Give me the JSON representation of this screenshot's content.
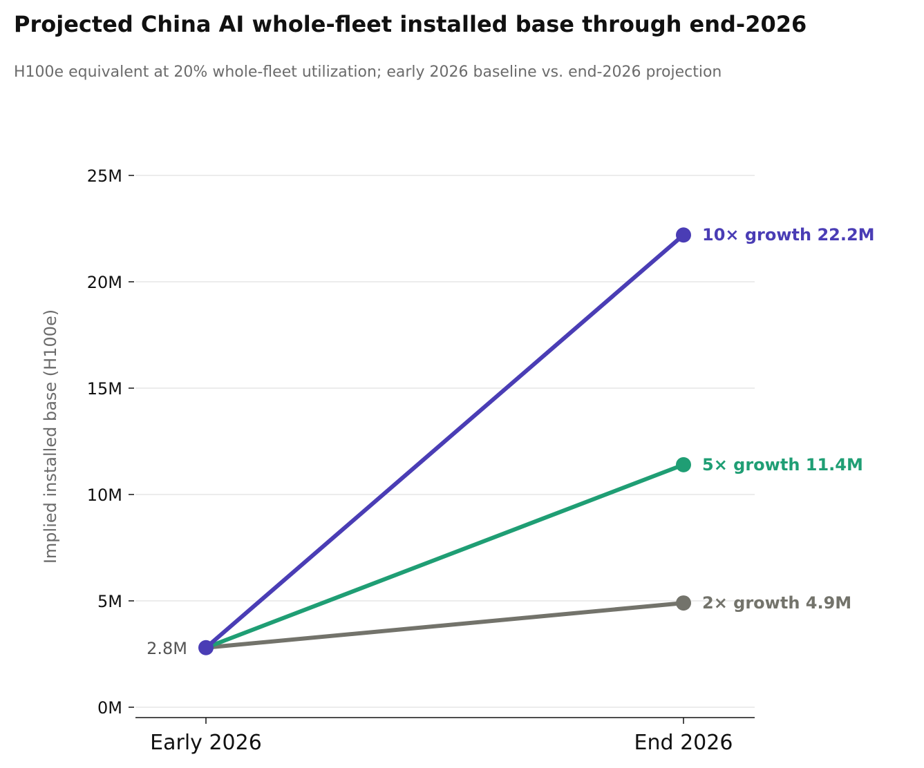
{
  "chart_data": {
    "type": "line",
    "title": "Projected China AI whole-fleet installed base through end-2026",
    "subtitle": "H100e equivalent at 20% whole-fleet utilization; early 2026 baseline vs. end-2026 projection",
    "xlabel": "",
    "ylabel": "Implied installed base (H100e)",
    "categories": [
      "Early 2026",
      "End 2026"
    ],
    "ylim": [
      0,
      25
    ],
    "yunit": "M",
    "yticks": [
      0,
      5,
      10,
      15,
      20,
      25
    ],
    "ytick_labels": [
      "0M",
      "5M",
      "10M",
      "15M",
      "20M",
      "25M"
    ],
    "grid": true,
    "baseline_label": "2.8M",
    "series": [
      {
        "name": "2× growth",
        "values": [
          2.8,
          4.9
        ],
        "end_label": "2× growth  4.9M",
        "color": "#73736b"
      },
      {
        "name": "5× growth",
        "values": [
          2.8,
          11.4
        ],
        "end_label": "5× growth  11.4M",
        "color": "#1f9e74"
      },
      {
        "name": "10× growth",
        "values": [
          2.8,
          22.2
        ],
        "end_label": "10× growth  22.2M",
        "color": "#4a3db5"
      }
    ]
  }
}
